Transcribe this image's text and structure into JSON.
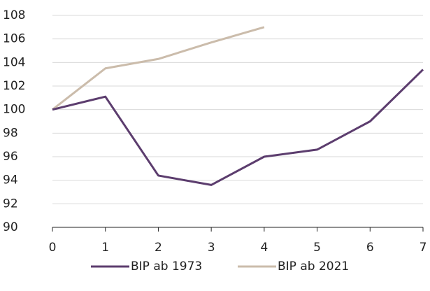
{
  "chart_data": {
    "type": "line",
    "x": [
      0,
      1,
      2,
      3,
      4,
      5,
      6,
      7
    ],
    "series": [
      {
        "name": "BIP ab 1973",
        "color": "#5c3d6e",
        "values": [
          100,
          101.1,
          94.4,
          93.6,
          96.0,
          96.6,
          99.0,
          103.4
        ]
      },
      {
        "name": "BIP ab 2021",
        "color": "#cbbcab",
        "values": [
          100,
          103.5,
          104.3,
          105.7,
          107.0,
          null,
          null,
          null
        ]
      }
    ],
    "xlim": [
      0,
      7
    ],
    "xticks": [
      0,
      1,
      2,
      3,
      4,
      5,
      6,
      7
    ],
    "ylim": [
      90,
      108
    ],
    "yticks": [
      90,
      92,
      94,
      96,
      98,
      100,
      102,
      104,
      106,
      108
    ],
    "grid": true,
    "legend": "bottom"
  }
}
